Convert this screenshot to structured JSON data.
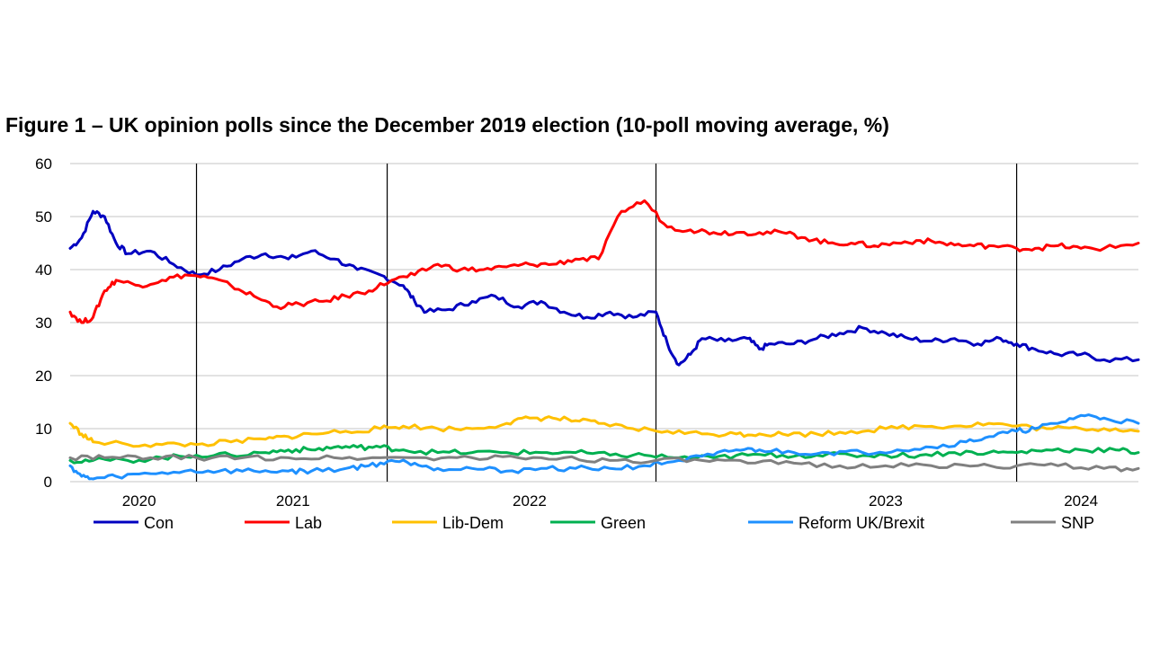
{
  "chart_data": {
    "type": "line",
    "title": "Figure 1 – UK opinion polls since the December 2019 election (10-poll moving average, %)",
    "xlabel": "",
    "ylabel": "",
    "ylim": [
      0,
      60
    ],
    "yticks": [
      "0",
      "10",
      "20",
      "30",
      "40",
      "50",
      "60"
    ],
    "xlim": [
      2019.95,
      2024.6
    ],
    "year_labels": [
      {
        "label": "2020",
        "x": 2020.25
      },
      {
        "label": "2021",
        "x": 2020.92
      },
      {
        "label": "2022",
        "x": 2021.95
      },
      {
        "label": "2023",
        "x": 2023.5
      },
      {
        "label": "2024",
        "x": 2024.35
      }
    ],
    "vertical_markers": [
      2020.5,
      2021.33,
      2022.5,
      2024.07
    ],
    "grid": true,
    "legend_position": "bottom",
    "series": [
      {
        "name": "Con",
        "color": "#0000C0",
        "points": [
          [
            2019.95,
            44
          ],
          [
            2020.0,
            46
          ],
          [
            2020.05,
            51
          ],
          [
            2020.1,
            50
          ],
          [
            2020.15,
            45
          ],
          [
            2020.2,
            43
          ],
          [
            2020.3,
            43.5
          ],
          [
            2020.4,
            41
          ],
          [
            2020.5,
            39
          ],
          [
            2020.6,
            40
          ],
          [
            2020.7,
            42
          ],
          [
            2020.8,
            43
          ],
          [
            2020.9,
            42
          ],
          [
            2021.0,
            43.5
          ],
          [
            2021.1,
            42
          ],
          [
            2021.2,
            40
          ],
          [
            2021.3,
            39
          ],
          [
            2021.4,
            37
          ],
          [
            2021.45,
            34
          ],
          [
            2021.5,
            32
          ],
          [
            2021.6,
            32.5
          ],
          [
            2021.7,
            34
          ],
          [
            2021.8,
            35
          ],
          [
            2021.9,
            33
          ],
          [
            2022.0,
            34
          ],
          [
            2022.1,
            32
          ],
          [
            2022.2,
            31
          ],
          [
            2022.3,
            32
          ],
          [
            2022.4,
            31
          ],
          [
            2022.5,
            32
          ],
          [
            2022.55,
            26
          ],
          [
            2022.6,
            22
          ],
          [
            2022.65,
            24
          ],
          [
            2022.7,
            27
          ],
          [
            2022.8,
            26.5
          ],
          [
            2022.9,
            27
          ],
          [
            2022.95,
            25
          ],
          [
            2023.0,
            26
          ],
          [
            2023.1,
            26
          ],
          [
            2023.2,
            27
          ],
          [
            2023.3,
            28
          ],
          [
            2023.4,
            29
          ],
          [
            2023.5,
            28
          ],
          [
            2023.6,
            27
          ],
          [
            2023.7,
            26.5
          ],
          [
            2023.8,
            27
          ],
          [
            2023.9,
            26
          ],
          [
            2024.0,
            27
          ],
          [
            2024.07,
            26
          ],
          [
            2024.15,
            25
          ],
          [
            2024.25,
            24
          ],
          [
            2024.35,
            24
          ],
          [
            2024.45,
            23
          ],
          [
            2024.6,
            23
          ]
        ]
      },
      {
        "name": "Lab",
        "color": "#FF0000",
        "points": [
          [
            2019.95,
            32
          ],
          [
            2020.0,
            30
          ],
          [
            2020.05,
            31
          ],
          [
            2020.1,
            36
          ],
          [
            2020.15,
            38
          ],
          [
            2020.25,
            37
          ],
          [
            2020.35,
            38
          ],
          [
            2020.45,
            39
          ],
          [
            2020.55,
            38.5
          ],
          [
            2020.65,
            37
          ],
          [
            2020.75,
            35
          ],
          [
            2020.85,
            33
          ],
          [
            2020.95,
            33.5
          ],
          [
            2021.05,
            34
          ],
          [
            2021.15,
            35
          ],
          [
            2021.25,
            36
          ],
          [
            2021.35,
            38
          ],
          [
            2021.45,
            39
          ],
          [
            2021.55,
            41
          ],
          [
            2021.65,
            40
          ],
          [
            2021.75,
            40
          ],
          [
            2021.85,
            40.5
          ],
          [
            2021.95,
            41
          ],
          [
            2022.05,
            41
          ],
          [
            2022.15,
            42
          ],
          [
            2022.25,
            42
          ],
          [
            2022.35,
            51
          ],
          [
            2022.45,
            53
          ],
          [
            2022.55,
            48
          ],
          [
            2022.65,
            47.5
          ],
          [
            2022.75,
            47
          ],
          [
            2022.85,
            47
          ],
          [
            2022.95,
            47
          ],
          [
            2023.05,
            47
          ],
          [
            2023.15,
            46
          ],
          [
            2023.25,
            45
          ],
          [
            2023.35,
            45
          ],
          [
            2023.45,
            44.5
          ],
          [
            2023.55,
            45
          ],
          [
            2023.65,
            45.5
          ],
          [
            2023.75,
            45
          ],
          [
            2023.85,
            44.5
          ],
          [
            2023.95,
            44.5
          ],
          [
            2024.07,
            44
          ],
          [
            2024.15,
            44
          ],
          [
            2024.25,
            44.5
          ],
          [
            2024.35,
            44
          ],
          [
            2024.45,
            44
          ],
          [
            2024.6,
            45
          ]
        ]
      },
      {
        "name": "Lib-Dem",
        "color": "#FFC000",
        "points": [
          [
            2019.95,
            11
          ],
          [
            2020.0,
            9
          ],
          [
            2020.05,
            7.5
          ],
          [
            2020.2,
            7
          ],
          [
            2020.35,
            7
          ],
          [
            2020.5,
            7
          ],
          [
            2020.65,
            7.5
          ],
          [
            2020.8,
            8
          ],
          [
            2020.9,
            8.5
          ],
          [
            2021.0,
            9
          ],
          [
            2021.15,
            9.5
          ],
          [
            2021.3,
            10
          ],
          [
            2021.4,
            10.5
          ],
          [
            2021.55,
            10
          ],
          [
            2021.7,
            10
          ],
          [
            2021.85,
            11
          ],
          [
            2021.95,
            12
          ],
          [
            2022.05,
            12
          ],
          [
            2022.15,
            11.5
          ],
          [
            2022.25,
            11
          ],
          [
            2022.4,
            10
          ],
          [
            2022.55,
            9.5
          ],
          [
            2022.7,
            9
          ],
          [
            2022.85,
            9
          ],
          [
            2022.95,
            9
          ],
          [
            2023.05,
            9
          ],
          [
            2023.2,
            9
          ],
          [
            2023.35,
            9.5
          ],
          [
            2023.5,
            10
          ],
          [
            2023.65,
            10.5
          ],
          [
            2023.8,
            10.5
          ],
          [
            2023.95,
            11
          ],
          [
            2024.07,
            10.5
          ],
          [
            2024.2,
            10
          ],
          [
            2024.35,
            10
          ],
          [
            2024.5,
            10
          ],
          [
            2024.6,
            9.5
          ]
        ]
      },
      {
        "name": "Green",
        "color": "#00B050",
        "points": [
          [
            2019.95,
            4
          ],
          [
            2020.05,
            4
          ],
          [
            2020.2,
            4
          ],
          [
            2020.35,
            4.5
          ],
          [
            2020.5,
            5
          ],
          [
            2020.65,
            5
          ],
          [
            2020.8,
            5.5
          ],
          [
            2020.9,
            6
          ],
          [
            2021.0,
            6
          ],
          [
            2021.1,
            6.5
          ],
          [
            2021.2,
            6.5
          ],
          [
            2021.3,
            6.5
          ],
          [
            2021.4,
            6
          ],
          [
            2021.55,
            5.5
          ],
          [
            2021.7,
            5.5
          ],
          [
            2021.85,
            5.5
          ],
          [
            2022.0,
            5.5
          ],
          [
            2022.15,
            5.5
          ],
          [
            2022.3,
            5
          ],
          [
            2022.45,
            5
          ],
          [
            2022.6,
            4.5
          ],
          [
            2022.75,
            4.5
          ],
          [
            2022.9,
            5
          ],
          [
            2023.05,
            5
          ],
          [
            2023.2,
            5
          ],
          [
            2023.35,
            5
          ],
          [
            2023.5,
            5
          ],
          [
            2023.65,
            5
          ],
          [
            2023.8,
            5.5
          ],
          [
            2023.95,
            5.5
          ],
          [
            2024.07,
            5.5
          ],
          [
            2024.2,
            6
          ],
          [
            2024.35,
            6
          ],
          [
            2024.5,
            6
          ],
          [
            2024.6,
            5.5
          ]
        ]
      },
      {
        "name": "Reform UK/Brexit",
        "color": "#1E90FF",
        "points": [
          [
            2019.95,
            3
          ],
          [
            2020.0,
            1
          ],
          [
            2020.05,
            0.5
          ],
          [
            2020.15,
            1
          ],
          [
            2020.3,
            1.5
          ],
          [
            2020.45,
            2
          ],
          [
            2020.6,
            2
          ],
          [
            2020.75,
            2
          ],
          [
            2020.9,
            2
          ],
          [
            2021.0,
            2
          ],
          [
            2021.15,
            2.5
          ],
          [
            2021.25,
            3
          ],
          [
            2021.35,
            4
          ],
          [
            2021.45,
            3.5
          ],
          [
            2021.55,
            2.5
          ],
          [
            2021.7,
            2.5
          ],
          [
            2021.85,
            2
          ],
          [
            2022.0,
            2.5
          ],
          [
            2022.15,
            2.5
          ],
          [
            2022.3,
            2.5
          ],
          [
            2022.45,
            3
          ],
          [
            2022.6,
            4
          ],
          [
            2022.75,
            5
          ],
          [
            2022.85,
            6
          ],
          [
            2022.95,
            6
          ],
          [
            2023.1,
            5.5
          ],
          [
            2023.25,
            5.5
          ],
          [
            2023.4,
            5.5
          ],
          [
            2023.55,
            6
          ],
          [
            2023.7,
            6.5
          ],
          [
            2023.85,
            7.5
          ],
          [
            2023.95,
            8.5
          ],
          [
            2024.07,
            9.5
          ],
          [
            2024.15,
            10
          ],
          [
            2024.25,
            11
          ],
          [
            2024.35,
            12.5
          ],
          [
            2024.45,
            12
          ],
          [
            2024.6,
            11
          ]
        ]
      },
      {
        "name": "SNP",
        "color": "#808080",
        "points": [
          [
            2019.95,
            4.5
          ],
          [
            2020.1,
            4.5
          ],
          [
            2020.3,
            4.5
          ],
          [
            2020.5,
            4.5
          ],
          [
            2020.7,
            4.5
          ],
          [
            2020.9,
            4.5
          ],
          [
            2021.1,
            4.5
          ],
          [
            2021.3,
            4.5
          ],
          [
            2021.5,
            4.5
          ],
          [
            2021.7,
            4.5
          ],
          [
            2021.9,
            4.5
          ],
          [
            2022.1,
            4.5
          ],
          [
            2022.3,
            4
          ],
          [
            2022.5,
            4
          ],
          [
            2022.7,
            4
          ],
          [
            2022.9,
            3.5
          ],
          [
            2023.1,
            3.5
          ],
          [
            2023.3,
            3
          ],
          [
            2023.5,
            3
          ],
          [
            2023.7,
            3
          ],
          [
            2023.9,
            3
          ],
          [
            2024.07,
            3
          ],
          [
            2024.25,
            3
          ],
          [
            2024.45,
            2.5
          ],
          [
            2024.6,
            2.5
          ]
        ]
      }
    ]
  }
}
